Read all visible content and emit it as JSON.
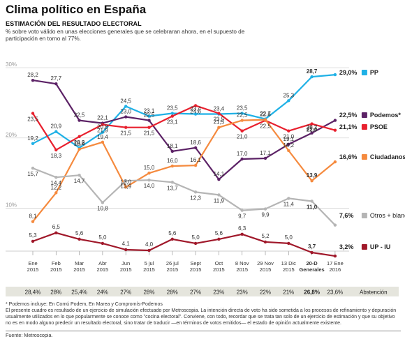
{
  "header": {
    "title": "Clima político en España",
    "subtitle": "ESTIMACIÓN DEL RESULTADO ELECTORAL",
    "description": "% sobre voto válido en unas elecciones generales que se celebraran ahora, en el supuesto de participación en torno al 77%."
  },
  "chart_data": {
    "type": "line",
    "x": [
      "Ene 2015",
      "Feb 2015",
      "Mar 2015",
      "Abr 2015",
      "Jun 2015",
      "5 jul 2015",
      "26 jul 2015",
      "Sept 2015",
      "Oct 2015",
      "8 Nov 2015",
      "29 Nov 2015",
      "13 Dic 2015",
      "20-D Generales",
      "17 Ene 2016"
    ],
    "ylim": [
      4,
      30
    ],
    "yticks": [
      {
        "value": 10,
        "label": "10%"
      },
      {
        "value": 20,
        "label": "20%"
      },
      {
        "value": 30,
        "label": "30%"
      }
    ],
    "grid": true,
    "series": [
      {
        "name": "PP",
        "color": "#1fb1e6",
        "values": [
          19.2,
          20.9,
          18.6,
          20.8,
          24.5,
          23.1,
          23.5,
          23.4,
          23.4,
          23.5,
          22.7,
          25.3,
          28.7,
          29.0
        ],
        "final_label": "29,0%",
        "labels": [
          "19,2",
          "20,9",
          "18,6",
          "20,8",
          "24,5",
          "23,1",
          "23,5",
          "23,4",
          "23,4",
          "23,5",
          "22,7",
          "25,3",
          "28,7",
          ""
        ]
      },
      {
        "name": "Podemos*",
        "color": "#5c2266",
        "values": [
          28.2,
          27.7,
          22.5,
          22.1,
          23.0,
          22.5,
          18.1,
          18.6,
          14.1,
          17.0,
          17.1,
          19.1,
          20.7,
          22.5
        ],
        "final_label": "22,5%",
        "labels": [
          "28,2",
          "27,7",
          "22,5",
          "22,1",
          "23,0",
          "22,5",
          "18,1",
          "18,6",
          "14,1",
          "17,0",
          "17,1",
          "19,1",
          "20,7",
          ""
        ]
      },
      {
        "name": "PSOE",
        "color": "#e8202e",
        "values": [
          23.5,
          18.3,
          20.2,
          21.9,
          21.5,
          21.5,
          23.1,
          24.6,
          23.5,
          21.0,
          22.5,
          21.0,
          22.0,
          21.1
        ],
        "final_label": "21,1%",
        "labels": [
          "23,5",
          "18,3",
          "20,2",
          "21,9",
          "21,5",
          "21,5",
          "23,1",
          "24,6",
          "23,5",
          "21,0",
          "22,5",
          "21,0",
          "22,0",
          ""
        ]
      },
      {
        "name": "Ciudadanos",
        "color": "#f58a3e",
        "values": [
          8.1,
          12.2,
          18.4,
          19.4,
          13.0,
          15.0,
          16.0,
          16.1,
          21.5,
          22.5,
          22.6,
          18.2,
          13.9,
          16.6
        ],
        "final_label": "16,6%",
        "labels": [
          "8,1",
          "12,2",
          "18,4",
          "19,4",
          "13,0",
          "15,0",
          "16,0",
          "16,1",
          "21,5",
          "22,5",
          "22,6",
          "18,2",
          "13,9",
          ""
        ]
      },
      {
        "name": "Otros + blanco",
        "color": "#b5b5b5",
        "values": [
          15.7,
          14.4,
          14.7,
          10.8,
          13.9,
          14.0,
          13.7,
          12.3,
          11.9,
          9.7,
          9.9,
          11.4,
          11.0,
          7.6
        ],
        "final_label": "7,6%",
        "labels": [
          "15,7",
          "14,4",
          "14,7",
          "10,8",
          "13,9",
          "14,0",
          "13,7",
          "12,3",
          "11,9",
          "9,7",
          "9,9",
          "11,4",
          "11,0",
          ""
        ]
      },
      {
        "name": "UP - IU",
        "color": "#a0182a",
        "values": [
          5.3,
          6.5,
          5.6,
          5.0,
          4.1,
          4.0,
          5.6,
          5.0,
          5.6,
          6.3,
          5.2,
          5.0,
          3.7,
          3.2
        ],
        "final_label": "3,2%",
        "labels": [
          "5,3",
          "6,5",
          "5,6",
          "5,0",
          "4,1",
          "4,0",
          "5,6",
          "5,0",
          "5,6",
          "6,3",
          "5,2",
          "5,0",
          "3,7",
          ""
        ]
      }
    ],
    "abstention": {
      "label": "Abstención",
      "values": [
        "28,4%",
        "28%",
        "25,4%",
        "24%",
        "27%",
        "28%",
        "28%",
        "27%",
        "23%",
        "23%",
        "22%",
        "21%",
        "26,8%",
        "23,6%"
      ]
    }
  },
  "notes": {
    "footnote": "* Podemos incluye: En Comú Podem, En Marea y Compromís-Podemos",
    "methodology": "El presente cuadro es resultado de un ejercicio de simulación efectuado por Metroscopia. La intención directa de voto ha sido sometida a los procesos de refinamiento y depuración usualmente utilizados en lo que popularmente se conoce como \"cocina electoral\". Conviene, con todo, recordar que se trata tan solo de un ejercicio de estimación y que su objetivo no es en modo alguno predecir un resultado electoral, sino tratar de traducir —en términos de votos emitidos— el estado de opinión actualmente existente.",
    "source": "Fuente: Metroscopia."
  }
}
